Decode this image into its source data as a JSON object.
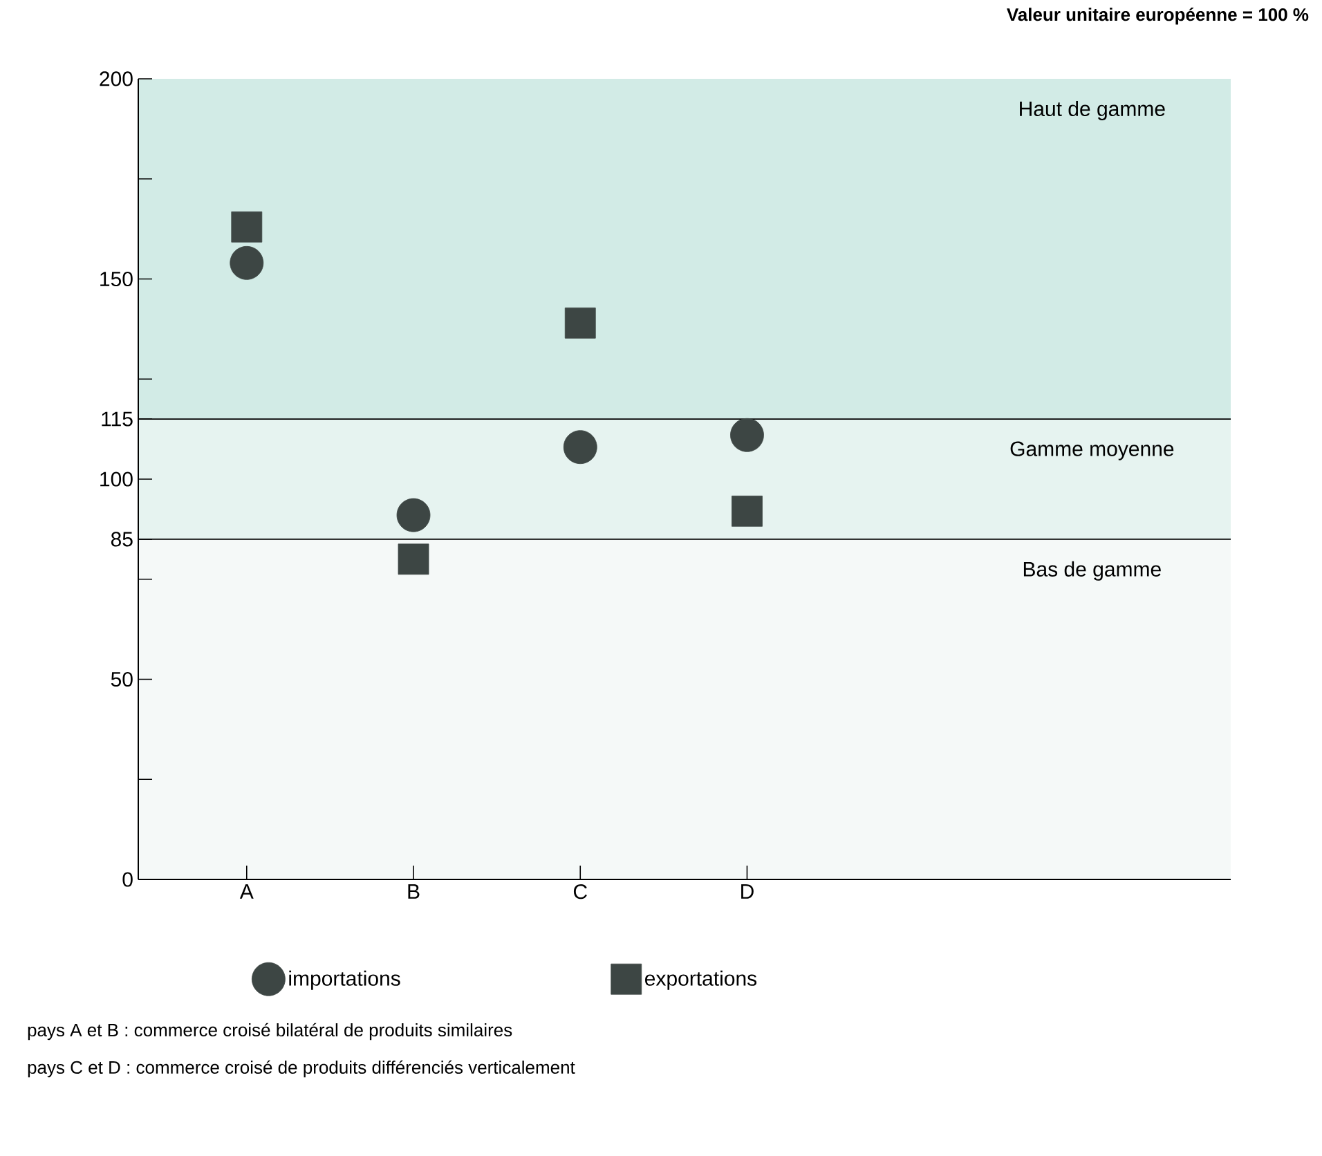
{
  "chart_data": {
    "type": "scatter",
    "subtitle": "Valeur unitaire européenne = 100 %",
    "categories": [
      "A",
      "B",
      "C",
      "D"
    ],
    "series": [
      {
        "name": "importations",
        "color": "#3d4644",
        "marker": "circle",
        "values": [
          154,
          91,
          108,
          111
        ]
      },
      {
        "name": "exportations",
        "color": "#3d4644",
        "marker": "square",
        "values": [
          163,
          80,
          139,
          92
        ]
      }
    ],
    "ylim": [
      0,
      200
    ],
    "yticks": [
      0,
      {
        "value": 25,
        "label": null
      },
      50,
      {
        "value": 75,
        "label": null
      },
      85,
      100,
      115,
      {
        "value": 125,
        "label": null
      },
      150,
      {
        "value": 175,
        "label": null
      },
      200
    ],
    "bands": [
      {
        "axis": "y",
        "from": 115,
        "to": 200,
        "label": "Haut de gamme",
        "color": "#d2ebe6"
      },
      {
        "axis": "y",
        "from": 85,
        "to": 115,
        "label": "Gamme moyenne",
        "color": "#e6f3f0"
      },
      {
        "axis": "y",
        "from": 0,
        "to": 85,
        "label": "Bas de gamme",
        "color": "#f5f9f8"
      }
    ],
    "legend": "bottom",
    "annotations": [
      "pays A et B : commerce croisé bilatéral de produits similaires",
      "pays C et D : commerce croisé de produits différenciés verticalement"
    ]
  }
}
